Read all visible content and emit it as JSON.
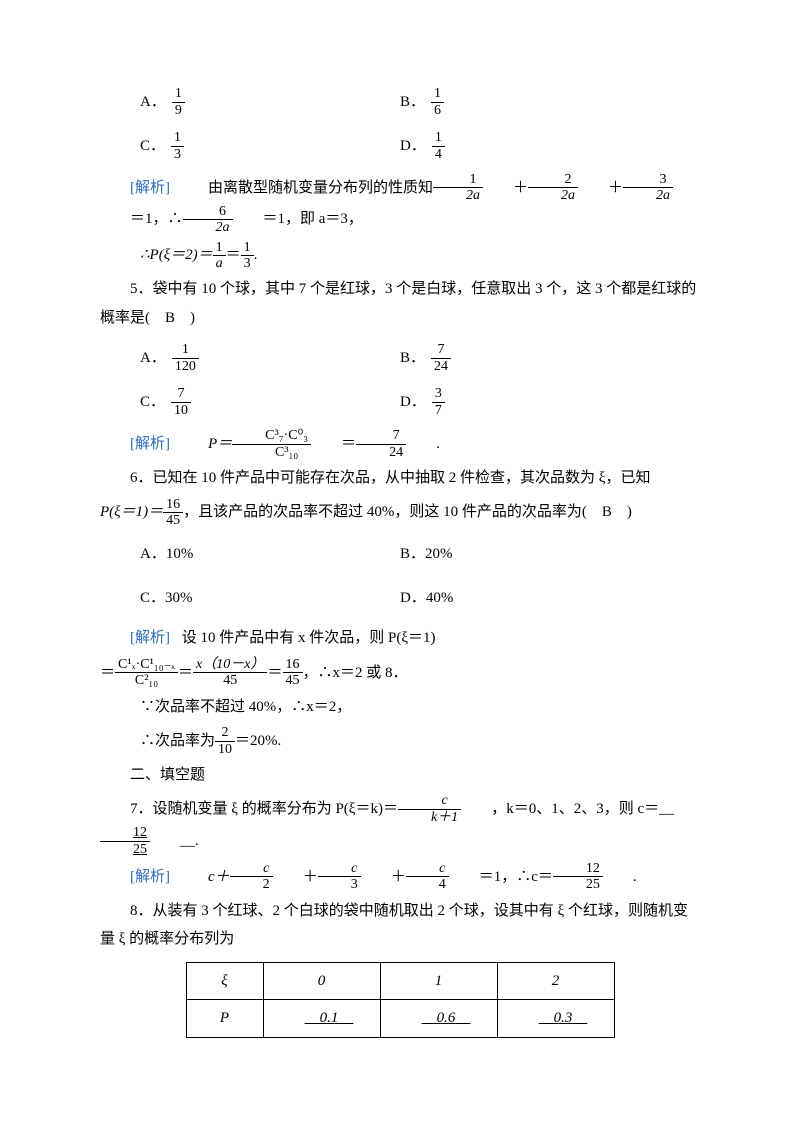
{
  "q4": {
    "choices": {
      "A": {
        "num": "1",
        "den": "9"
      },
      "B": {
        "num": "1",
        "den": "6"
      },
      "C": {
        "num": "1",
        "den": "3"
      },
      "D": {
        "num": "1",
        "den": "4"
      }
    },
    "analysis_label": "[解析]",
    "analysis_pre": "由离散型随机变量分布列的性质知",
    "f1": {
      "num": "1",
      "den": "2a"
    },
    "f2": {
      "num": "2",
      "den": "2a"
    },
    "f3": {
      "num": "3",
      "den": "2a"
    },
    "f4": {
      "num": "6",
      "den": "2a"
    },
    "eq_tail1": "＝1，∴",
    "eq_tail2": "＝1，即 a＝3，",
    "line2_pre": "∴P(ξ＝2)＝",
    "f5": {
      "num": "1",
      "den": "a"
    },
    "f6": {
      "num": "1",
      "den": "3"
    }
  },
  "q5": {
    "stem": "5．袋中有 10 个球，其中 7 个是红球，3 个是白球，任意取出 3 个，这 3 个都是红球的概率是(　B　)",
    "choices": {
      "A": {
        "num": "1",
        "den": "120"
      },
      "B": {
        "num": "7",
        "den": "24"
      },
      "C": {
        "num": "7",
        "den": "10"
      },
      "D": {
        "num": "3",
        "den": "7"
      }
    },
    "analysis_label": "[解析]",
    "p_eq": "P＝",
    "fc_top": "C³₇·C⁰₃",
    "fc_bot": "C³₁₀",
    "fv": {
      "num": "7",
      "den": "24"
    }
  },
  "q6": {
    "stem_a": "6．已知在 10 件产品中可能存在次品，从中抽取 2 件检查，其次品数为 ξ，已知",
    "stem_b_pre": "P(ξ＝1)＝",
    "pf": {
      "num": "16",
      "den": "45"
    },
    "stem_b_post": "，且该产品的次品率不超过 40%，则这 10 件产品的次品率为(　B　)",
    "choices": {
      "A": "10%",
      "B": "20%",
      "C": "30%",
      "D": "40%"
    },
    "analysis_label": "[解析]",
    "a1": "设 10 件产品中有 x 件次品，则 P(ξ＝1)",
    "fc1_top": "C¹ₓ·C¹₁₀₋ₓ",
    "fc1_bot": "C²₁₀",
    "fc2_top": "x（10－x）",
    "fc2_bot": "45",
    "fc3": {
      "num": "16",
      "den": "45"
    },
    "a2_tail": "，∴x＝2 或 8．",
    "a3": "∵次品率不超过 40%，∴x＝2，",
    "a4_pre": "∴次品率为",
    "a4_frac": {
      "num": "2",
      "den": "10"
    },
    "a4_post": "＝20%."
  },
  "sec2": "二、填空题",
  "q7": {
    "stem_pre": "7．设随机变量 ξ 的概率分布为 P(ξ＝k)＝",
    "frac": {
      "num": "c",
      "den": "k＋1"
    },
    "stem_mid": "，k＝0、1、2、3，则 c＝__",
    "ans": {
      "num": "12",
      "den": "25"
    },
    "stem_post": "__.",
    "analysis_label": "[解析]",
    "a_pre": "c＋",
    "f1": {
      "num": "c",
      "den": "2"
    },
    "f2": {
      "num": "c",
      "den": "3"
    },
    "f3": {
      "num": "c",
      "den": "4"
    },
    "a_mid": "＝1，∴c＝",
    "f4": {
      "num": "12",
      "den": "25"
    }
  },
  "q8": {
    "stem": "8．从装有 3 个红球、2 个白球的袋中随机取出 2 个球，设其中有 ξ 个红球，则随机变量 ξ 的概率分布列为",
    "table": {
      "header_var": "ξ",
      "header_P": "P",
      "cols": [
        "0",
        "1",
        "2"
      ],
      "vals": [
        "0.1",
        "0.6",
        "0.3"
      ]
    }
  }
}
